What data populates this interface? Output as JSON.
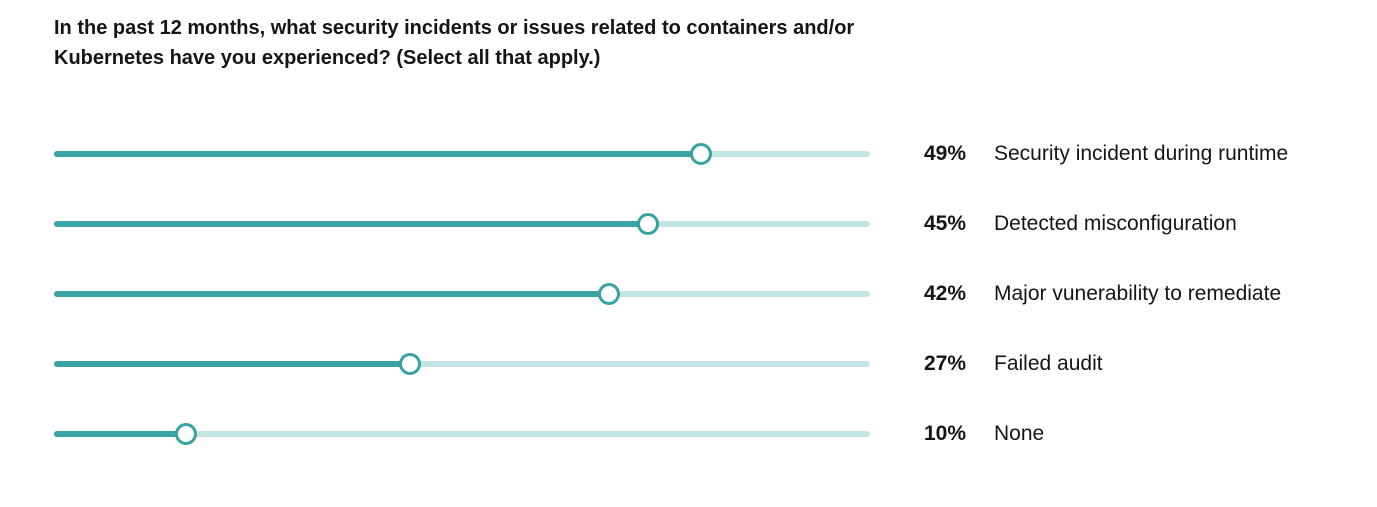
{
  "chart_data": {
    "type": "bar",
    "title": "In the past 12 months, what security incidents or issues related to containers and/or Kubernetes have you experienced? (Select all that apply.)",
    "orientation": "horizontal",
    "xlim": [
      0,
      100
    ],
    "unit": "%",
    "grid": false,
    "legend": "none",
    "categories": [
      "Security incident during runtime",
      "Detected misconfiguration",
      "Major vunerability to remediate",
      "Failed audit",
      "None"
    ],
    "values": [
      49,
      45,
      42,
      27,
      10
    ],
    "value_labels": [
      "49%",
      "45%",
      "42%",
      "27%",
      "10%"
    ],
    "colors": {
      "fill": "#37a3a3",
      "track": "#c3e4e5"
    }
  }
}
